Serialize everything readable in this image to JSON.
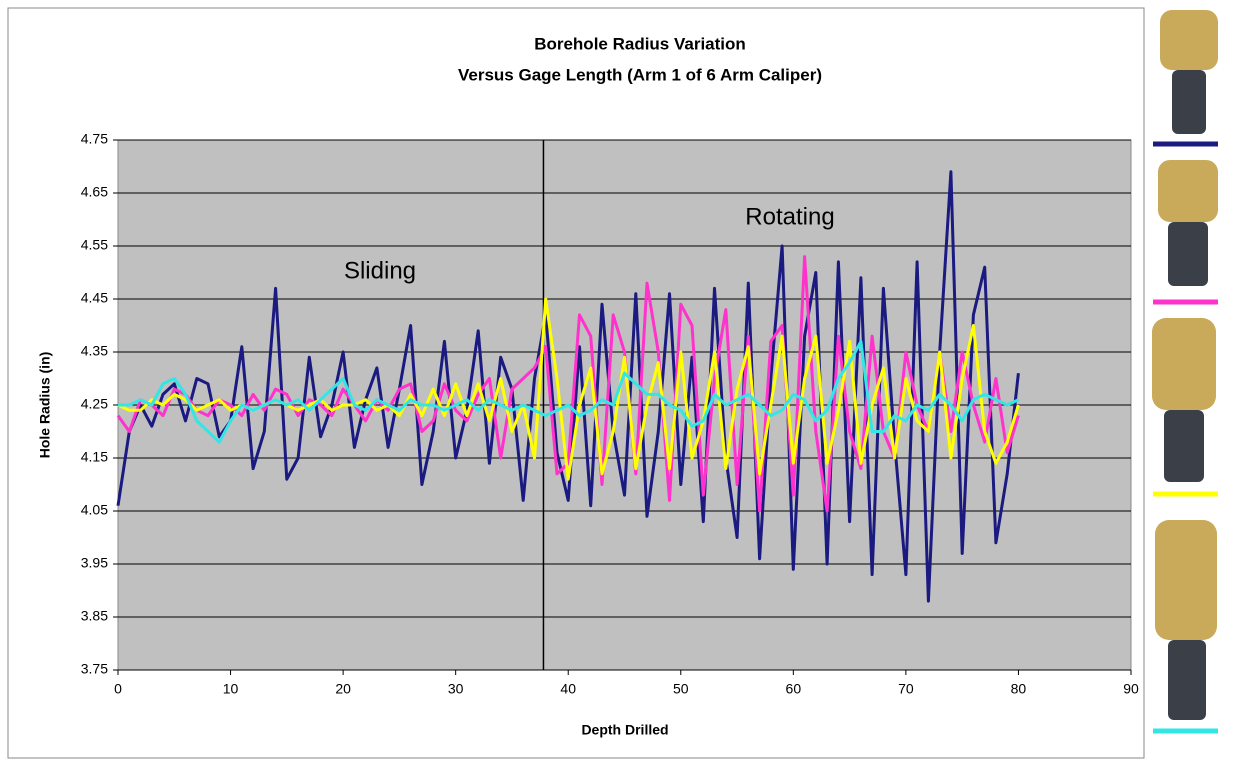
{
  "chart_data": {
    "type": "line",
    "title": "Borehole Radius Variation",
    "subtitle": "Versus Gage Length (Arm 1 of 6 Arm Caliper)",
    "x_label": "Depth Drilled",
    "y_label": "Hole Radius (in)",
    "annotations": [
      "Sliding",
      "Rotating"
    ],
    "vline": 37.8,
    "xlim": [
      0,
      90
    ],
    "xticks": [
      0,
      10,
      20,
      30,
      40,
      50,
      60,
      70,
      80,
      90
    ],
    "ylim": [
      3.75,
      4.75
    ],
    "yticks": [
      3.75,
      3.85,
      3.95,
      4.05,
      4.15,
      4.25,
      4.35,
      4.45,
      4.55,
      4.65,
      4.75
    ],
    "grid": true,
    "x": [
      0,
      1,
      2,
      3,
      4,
      5,
      6,
      7,
      8,
      9,
      10,
      11,
      12,
      13,
      14,
      15,
      16,
      17,
      18,
      19,
      20,
      21,
      22,
      23,
      24,
      25,
      26,
      27,
      28,
      29,
      30,
      31,
      32,
      33,
      34,
      35,
      36,
      37,
      38,
      39,
      40,
      41,
      42,
      43,
      44,
      45,
      46,
      47,
      48,
      49,
      50,
      51,
      52,
      53,
      54,
      55,
      56,
      57,
      58,
      59,
      60,
      61,
      62,
      63,
      64,
      65,
      66,
      67,
      68,
      69,
      70,
      71,
      72,
      73,
      74,
      75,
      76,
      77,
      78,
      79,
      80
    ],
    "series": [
      {
        "color": "#1a1a80",
        "values": [
          4.06,
          4.2,
          4.25,
          4.21,
          4.27,
          4.29,
          4.22,
          4.3,
          4.29,
          4.19,
          4.22,
          4.36,
          4.13,
          4.2,
          4.47,
          4.11,
          4.15,
          4.34,
          4.19,
          4.25,
          4.35,
          4.17,
          4.26,
          4.32,
          4.17,
          4.28,
          4.4,
          4.1,
          4.2,
          4.37,
          4.15,
          4.24,
          4.39,
          4.14,
          4.34,
          4.28,
          4.07,
          4.3,
          4.42,
          4.16,
          4.07,
          4.36,
          4.06,
          4.44,
          4.2,
          4.08,
          4.46,
          4.04,
          4.2,
          4.46,
          4.1,
          4.34,
          4.03,
          4.47,
          4.15,
          4.0,
          4.48,
          3.96,
          4.3,
          4.55,
          3.94,
          4.38,
          4.5,
          3.95,
          4.52,
          4.03,
          4.49,
          3.93,
          4.47,
          4.18,
          3.93,
          4.52,
          3.88,
          4.35,
          4.69,
          3.97,
          4.42,
          4.51,
          3.99,
          4.12,
          4.31
        ]
      },
      {
        "color": "#ff33cc",
        "values": [
          4.23,
          4.2,
          4.26,
          4.25,
          4.23,
          4.28,
          4.27,
          4.24,
          4.23,
          4.26,
          4.25,
          4.23,
          4.27,
          4.24,
          4.28,
          4.27,
          4.23,
          4.26,
          4.25,
          4.23,
          4.28,
          4.25,
          4.22,
          4.26,
          4.24,
          4.28,
          4.29,
          4.2,
          4.22,
          4.29,
          4.24,
          4.22,
          4.27,
          4.3,
          4.15,
          4.28,
          4.3,
          4.32,
          4.36,
          4.12,
          4.14,
          4.42,
          4.38,
          4.1,
          4.42,
          4.35,
          4.12,
          4.48,
          4.35,
          4.07,
          4.44,
          4.4,
          4.08,
          4.3,
          4.43,
          4.1,
          4.38,
          4.05,
          4.37,
          4.4,
          4.08,
          4.53,
          4.2,
          4.05,
          4.38,
          4.2,
          4.13,
          4.38,
          4.2,
          4.15,
          4.35,
          4.25,
          4.2,
          4.35,
          4.2,
          4.35,
          4.25,
          4.18,
          4.3,
          4.16,
          4.23
        ]
      },
      {
        "color": "#ffff00",
        "values": [
          4.25,
          4.24,
          4.24,
          4.26,
          4.25,
          4.27,
          4.26,
          4.24,
          4.25,
          4.26,
          4.24,
          4.25,
          4.24,
          4.25,
          4.26,
          4.25,
          4.24,
          4.25,
          4.26,
          4.24,
          4.25,
          4.25,
          4.26,
          4.24,
          4.25,
          4.23,
          4.27,
          4.23,
          4.28,
          4.23,
          4.29,
          4.23,
          4.29,
          4.22,
          4.3,
          4.2,
          4.25,
          4.15,
          4.45,
          4.3,
          4.11,
          4.25,
          4.32,
          4.12,
          4.2,
          4.34,
          4.13,
          4.25,
          4.33,
          4.13,
          4.35,
          4.15,
          4.22,
          4.35,
          4.13,
          4.28,
          4.36,
          4.12,
          4.25,
          4.38,
          4.14,
          4.3,
          4.38,
          4.14,
          4.24,
          4.37,
          4.14,
          4.25,
          4.32,
          4.15,
          4.3,
          4.22,
          4.2,
          4.35,
          4.15,
          4.3,
          4.4,
          4.2,
          4.14,
          4.18,
          4.25
        ]
      },
      {
        "color": "#33e6e6",
        "values": [
          4.25,
          4.25,
          4.26,
          4.25,
          4.29,
          4.3,
          4.27,
          4.22,
          4.2,
          4.18,
          4.22,
          4.25,
          4.24,
          4.25,
          4.26,
          4.25,
          4.26,
          4.24,
          4.26,
          4.28,
          4.3,
          4.25,
          4.24,
          4.26,
          4.25,
          4.24,
          4.26,
          4.25,
          4.25,
          4.24,
          4.25,
          4.26,
          4.24,
          4.26,
          4.25,
          4.24,
          4.25,
          4.24,
          4.23,
          4.24,
          4.25,
          4.23,
          4.24,
          4.26,
          4.25,
          4.31,
          4.29,
          4.27,
          4.27,
          4.25,
          4.24,
          4.21,
          4.22,
          4.27,
          4.25,
          4.26,
          4.27,
          4.25,
          4.23,
          4.24,
          4.27,
          4.26,
          4.22,
          4.24,
          4.3,
          4.33,
          4.37,
          4.2,
          4.2,
          4.23,
          4.22,
          4.25,
          4.24,
          4.27,
          4.25,
          4.22,
          4.26,
          4.27,
          4.26,
          4.25,
          4.26
        ]
      }
    ]
  }
}
